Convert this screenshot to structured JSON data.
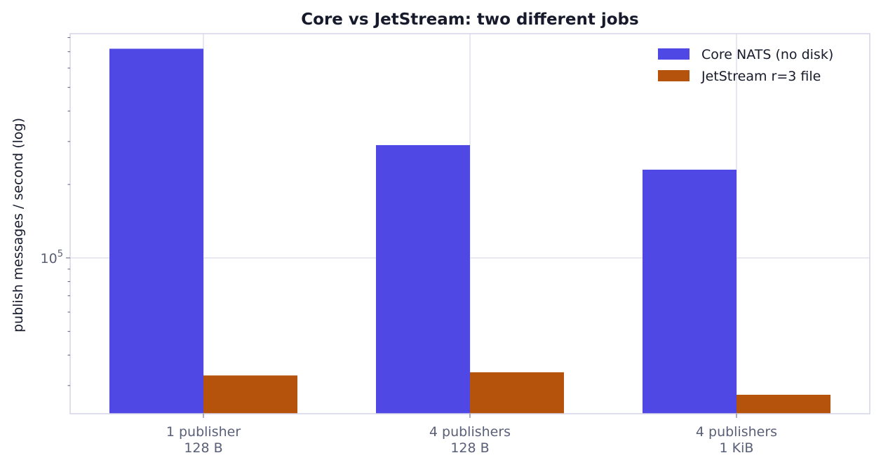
{
  "chart_data": {
    "type": "bar",
    "title": "Core vs JetStream: two different jobs",
    "xlabel": "",
    "ylabel": "publish messages / second (log)",
    "yscale": "log",
    "ylim": [
      23000,
      830000
    ],
    "yticks": [
      {
        "base": "10",
        "exp": "5",
        "value": 100000
      }
    ],
    "categories": [
      [
        "1 publisher",
        "128 B"
      ],
      [
        "4 publishers",
        "128 B"
      ],
      [
        "4 publishers",
        "1 KiB"
      ]
    ],
    "series": [
      {
        "name": "Core NATS (no disk)",
        "color": "#5048e5",
        "values": [
          720000,
          290000,
          230000
        ]
      },
      {
        "name": "JetStream r=3 file",
        "color": "#b5520b",
        "values": [
          33000,
          34000,
          27500
        ]
      }
    ],
    "grid": true,
    "legend": "top-right"
  }
}
